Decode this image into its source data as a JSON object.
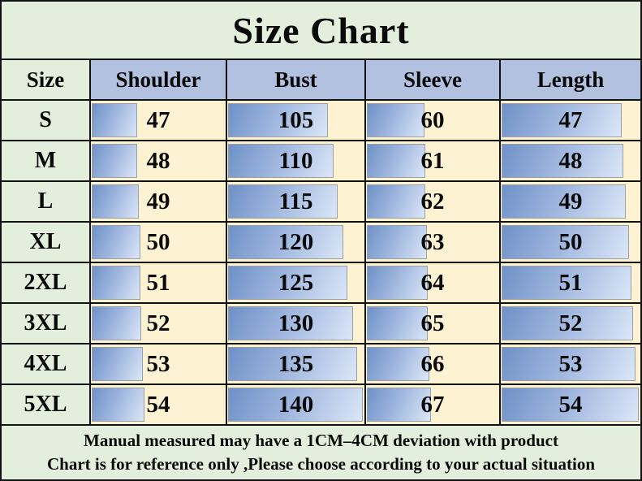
{
  "title": "Size Chart",
  "chart_data": {
    "type": "table",
    "title": "Size Chart",
    "columns": [
      "Size",
      "Shoulder",
      "Bust",
      "Sleeve",
      "Length"
    ],
    "rows": [
      [
        "S",
        47,
        105,
        60,
        47
      ],
      [
        "M",
        48,
        110,
        61,
        48
      ],
      [
        "L",
        49,
        115,
        62,
        49
      ],
      [
        "XL",
        50,
        120,
        63,
        50
      ],
      [
        "2XL",
        51,
        125,
        64,
        51
      ],
      [
        "3XL",
        52,
        130,
        65,
        52
      ],
      [
        "4XL",
        53,
        135,
        66,
        53
      ],
      [
        "5XL",
        54,
        140,
        67,
        54
      ]
    ],
    "notes": [
      "Manual measured may have a 1CM–4CM deviation with product",
      "Chart is for reference only ,Please choose according to your actual situation"
    ]
  },
  "table": {
    "headers": [
      "Size",
      "Shoulder",
      "Bust",
      "Sleeve",
      "Length"
    ],
    "rows": [
      {
        "size": "S",
        "cells": [
          {
            "v": "47",
            "bar": 34
          },
          {
            "v": "105",
            "bar": 73
          },
          {
            "v": "60",
            "bar": 43
          },
          {
            "v": "47",
            "bar": 86
          }
        ]
      },
      {
        "size": "M",
        "cells": [
          {
            "v": "48",
            "bar": 34
          },
          {
            "v": "110",
            "bar": 77
          },
          {
            "v": "61",
            "bar": 44
          },
          {
            "v": "48",
            "bar": 87
          }
        ]
      },
      {
        "size": "L",
        "cells": [
          {
            "v": "49",
            "bar": 35
          },
          {
            "v": "115",
            "bar": 80
          },
          {
            "v": "62",
            "bar": 44
          },
          {
            "v": "49",
            "bar": 89
          }
        ]
      },
      {
        "size": "XL",
        "cells": [
          {
            "v": "50",
            "bar": 36
          },
          {
            "v": "120",
            "bar": 84
          },
          {
            "v": "63",
            "bar": 45
          },
          {
            "v": "50",
            "bar": 91
          }
        ]
      },
      {
        "size": "2XL",
        "cells": [
          {
            "v": "51",
            "bar": 36
          },
          {
            "v": "125",
            "bar": 87
          },
          {
            "v": "64",
            "bar": 46
          },
          {
            "v": "51",
            "bar": 93
          }
        ]
      },
      {
        "size": "3XL",
        "cells": [
          {
            "v": "52",
            "bar": 37
          },
          {
            "v": "130",
            "bar": 91
          },
          {
            "v": "65",
            "bar": 46
          },
          {
            "v": "52",
            "bar": 94
          }
        ]
      },
      {
        "size": "4XL",
        "cells": [
          {
            "v": "53",
            "bar": 38
          },
          {
            "v": "135",
            "bar": 94
          },
          {
            "v": "66",
            "bar": 47
          },
          {
            "v": "53",
            "bar": 96
          }
        ]
      },
      {
        "size": "5XL",
        "cells": [
          {
            "v": "54",
            "bar": 39
          },
          {
            "v": "140",
            "bar": 98
          },
          {
            "v": "67",
            "bar": 48
          },
          {
            "v": "54",
            "bar": 98
          }
        ]
      }
    ]
  },
  "footer": {
    "line1": "Manual measured may have a 1CM–4CM deviation with product",
    "line2": "Chart is for reference only ,Please choose according to your actual situation"
  },
  "colors": {
    "panel_green": "#e3efdc",
    "header_blue": "#b3c1e1",
    "cell_cream": "#fdf3d2",
    "bar_gradient_dark": "#6e91c7",
    "bar_gradient_light": "#dbe7f8",
    "grid_border": "#121212",
    "text": "#0a0a0a"
  }
}
